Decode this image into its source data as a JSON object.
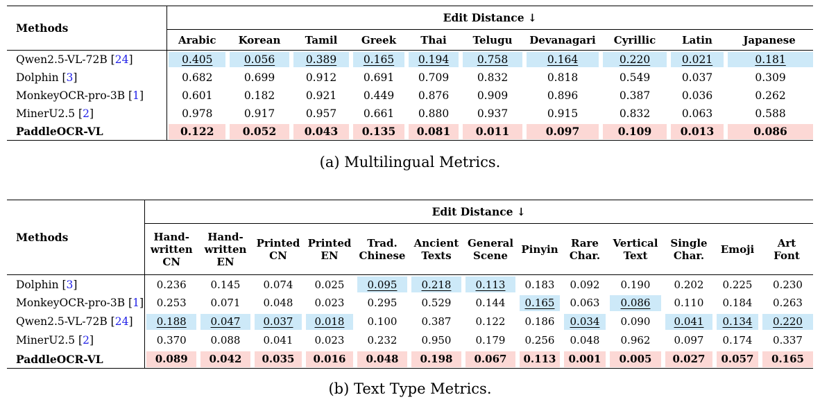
{
  "colors": {
    "highlight_blue": "#CDE9F8",
    "highlight_pink": "#FCD8D5",
    "citation_blue": "#1F1FE8"
  },
  "tables": [
    {
      "caption": "(a) Multilingual Metrics.",
      "methods_header": "Methods",
      "group_header": "Edit Distance ↓",
      "columns": [
        "Arabic",
        "Korean",
        "Tamil",
        "Greek",
        "Thai",
        "Telugu",
        "Devanagari",
        "Cyrillic",
        "Latin",
        "Japanese"
      ],
      "rows": [
        {
          "method": "Qwen2.5-VL-72B",
          "cite": "24",
          "pink_row": false,
          "values": [
            "0.405",
            "0.056",
            "0.389",
            "0.165",
            "0.194",
            "0.758",
            "0.164",
            "0.220",
            "0.021",
            "0.181"
          ],
          "blue_cells": [
            0,
            1,
            2,
            3,
            4,
            5,
            6,
            7,
            8,
            9
          ]
        },
        {
          "method": "Dolphin",
          "cite": "3",
          "pink_row": false,
          "values": [
            "0.682",
            "0.699",
            "0.912",
            "0.691",
            "0.709",
            "0.832",
            "0.818",
            "0.549",
            "0.037",
            "0.309"
          ],
          "blue_cells": []
        },
        {
          "method": "MonkeyOCR-pro-3B",
          "cite": "1",
          "pink_row": false,
          "values": [
            "0.601",
            "0.182",
            "0.921",
            "0.449",
            "0.876",
            "0.909",
            "0.896",
            "0.387",
            "0.036",
            "0.262"
          ],
          "blue_cells": []
        },
        {
          "method": "MinerU2.5",
          "cite": "2",
          "pink_row": false,
          "values": [
            "0.978",
            "0.917",
            "0.957",
            "0.661",
            "0.880",
            "0.937",
            "0.915",
            "0.832",
            "0.063",
            "0.588"
          ],
          "blue_cells": []
        },
        {
          "method": "PaddleOCR-VL",
          "cite": null,
          "pink_row": true,
          "values": [
            "0.122",
            "0.052",
            "0.043",
            "0.135",
            "0.081",
            "0.011",
            "0.097",
            "0.109",
            "0.013",
            "0.086"
          ],
          "blue_cells": []
        }
      ]
    },
    {
      "caption": "(b) Text Type Metrics.",
      "methods_header": "Methods",
      "group_header": "Edit Distance ↓",
      "columns": [
        "Hand-\nwritten\nCN",
        "Hand-\nwritten\nEN",
        "Printed\nCN",
        "Printed\nEN",
        "Trad.\nChinese",
        "Ancient\nTexts",
        "General\nScene",
        "Pinyin",
        "Rare\nChar.",
        "Vertical\nText",
        "Single\nChar.",
        "Emoji",
        "Art\nFont"
      ],
      "rows": [
        {
          "method": "Dolphin",
          "cite": "3",
          "pink_row": false,
          "values": [
            "0.236",
            "0.145",
            "0.074",
            "0.025",
            "0.095",
            "0.218",
            "0.113",
            "0.183",
            "0.092",
            "0.190",
            "0.202",
            "0.225",
            "0.230"
          ],
          "blue_cells": [
            4,
            5,
            6
          ]
        },
        {
          "method": "MonkeyOCR-pro-3B",
          "cite": "1",
          "pink_row": false,
          "values": [
            "0.253",
            "0.071",
            "0.048",
            "0.023",
            "0.295",
            "0.529",
            "0.144",
            "0.165",
            "0.063",
            "0.086",
            "0.110",
            "0.184",
            "0.263"
          ],
          "blue_cells": [
            7,
            9
          ]
        },
        {
          "method": "Qwen2.5-VL-72B",
          "cite": "24",
          "pink_row": false,
          "values": [
            "0.188",
            "0.047",
            "0.037",
            "0.018",
            "0.100",
            "0.387",
            "0.122",
            "0.186",
            "0.034",
            "0.090",
            "0.041",
            "0.134",
            "0.220"
          ],
          "blue_cells": [
            0,
            1,
            2,
            3,
            8,
            10,
            11,
            12
          ]
        },
        {
          "method": "MinerU2.5",
          "cite": "2",
          "pink_row": false,
          "values": [
            "0.370",
            "0.088",
            "0.041",
            "0.023",
            "0.232",
            "0.950",
            "0.179",
            "0.256",
            "0.048",
            "0.962",
            "0.097",
            "0.174",
            "0.337"
          ],
          "blue_cells": []
        },
        {
          "method": "PaddleOCR-VL",
          "cite": null,
          "pink_row": true,
          "values": [
            "0.089",
            "0.042",
            "0.035",
            "0.016",
            "0.048",
            "0.198",
            "0.067",
            "0.113",
            "0.001",
            "0.005",
            "0.027",
            "0.057",
            "0.165"
          ],
          "blue_cells": []
        }
      ]
    }
  ]
}
